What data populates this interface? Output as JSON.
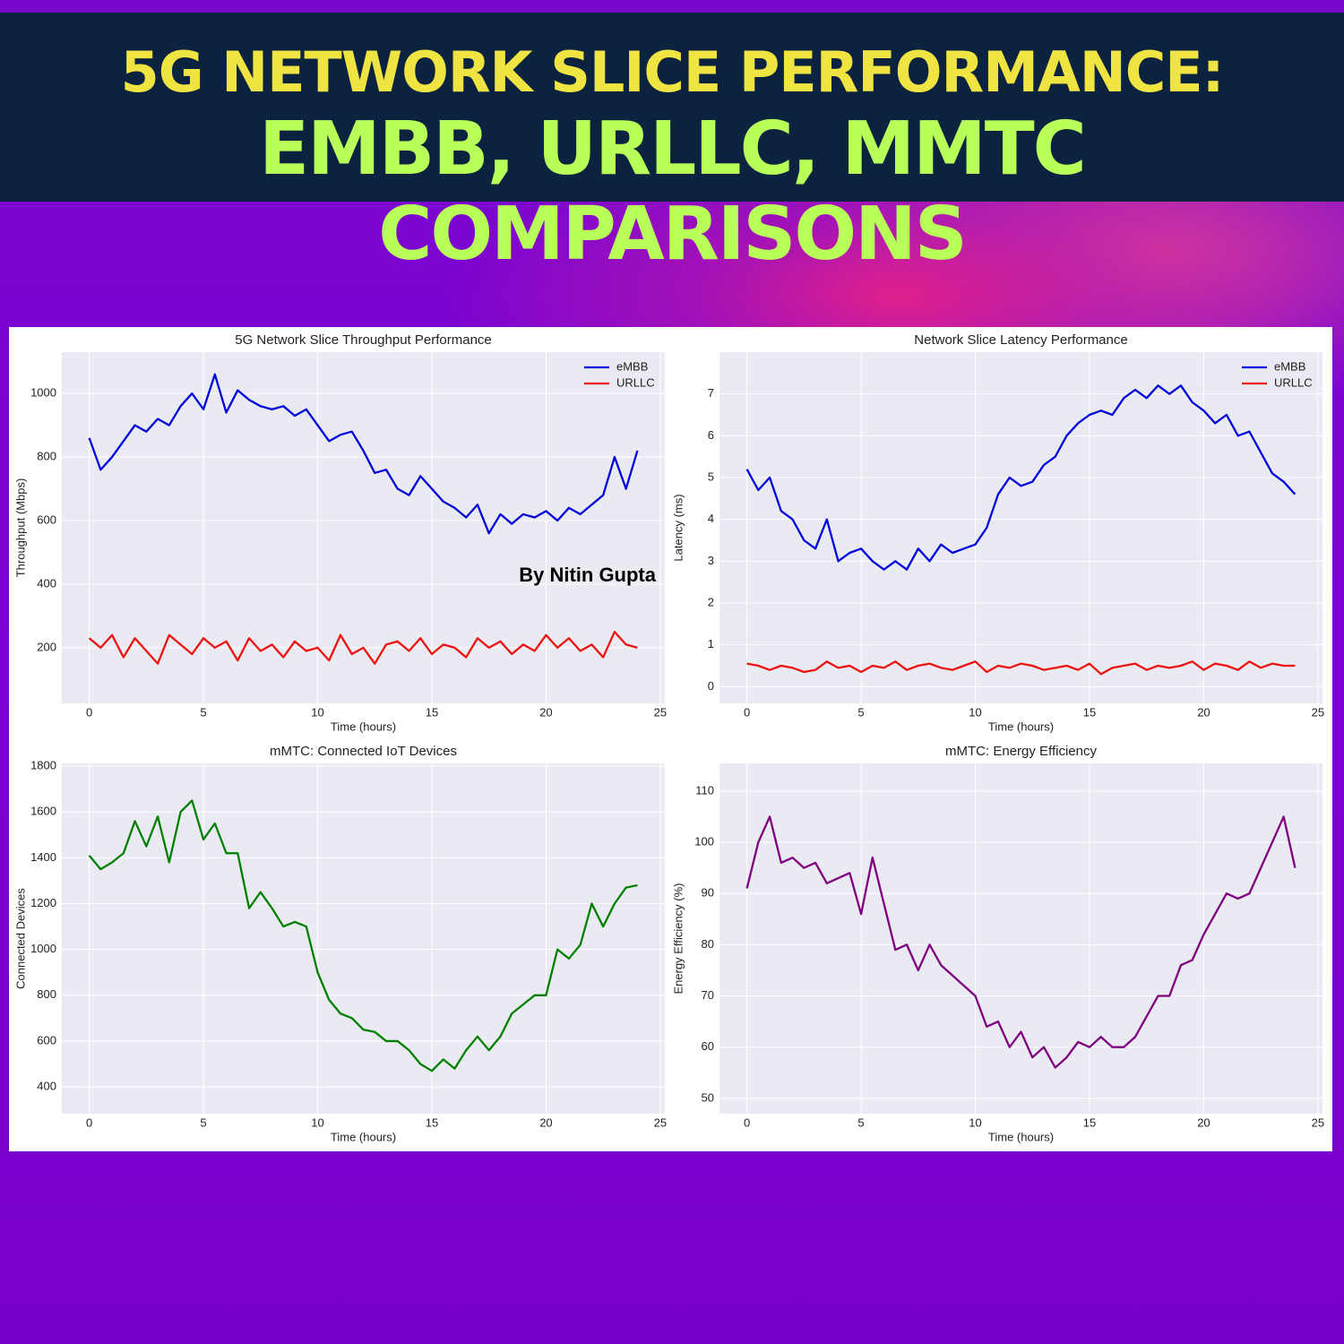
{
  "header": {
    "line1": "5G NETWORK  SLICE PERFORMANCE:",
    "line2": "EMBB, URLLC, MMTC COMPARISONS"
  },
  "chart_data": [
    {
      "type": "line",
      "title": "5G Network Slice Throughput Performance",
      "x_label": "Time (hours)",
      "y_label": "Throughput (Mbps)",
      "annotation": "By Nitin Gupta",
      "legend": "upper right",
      "grid": true,
      "xlim": [
        -1.2,
        25.2
      ],
      "xticks": [
        0,
        5,
        10,
        15,
        20,
        25
      ],
      "ylim": [
        25,
        1130
      ],
      "yticks": [
        200,
        400,
        600,
        800,
        1000
      ],
      "x": [
        0,
        0.5,
        1,
        1.5,
        2,
        2.5,
        3,
        3.5,
        4,
        4.5,
        5,
        5.5,
        6,
        6.5,
        7,
        7.5,
        8,
        8.5,
        9,
        9.5,
        10,
        10.5,
        11,
        11.5,
        12,
        12.5,
        13,
        13.5,
        14,
        14.5,
        15,
        15.5,
        16,
        16.5,
        17,
        17.5,
        18,
        18.5,
        19,
        19.5,
        20,
        20.5,
        21,
        21.5,
        22,
        22.5,
        23,
        23.5,
        24
      ],
      "series": [
        {
          "name": "eMBB",
          "color": "#0000dd",
          "values": [
            860,
            760,
            800,
            850,
            900,
            880,
            920,
            900,
            960,
            1000,
            950,
            1060,
            940,
            1010,
            980,
            960,
            950,
            960,
            930,
            950,
            900,
            850,
            870,
            880,
            820,
            750,
            760,
            700,
            680,
            740,
            700,
            660,
            640,
            610,
            650,
            560,
            620,
            590,
            620,
            610,
            630,
            600,
            640,
            620,
            650,
            680,
            800,
            700,
            820
          ]
        },
        {
          "name": "URLLC",
          "color": "#ee1111",
          "values": [
            230,
            200,
            240,
            170,
            230,
            190,
            150,
            240,
            210,
            180,
            230,
            200,
            220,
            160,
            230,
            190,
            210,
            170,
            220,
            190,
            200,
            160,
            240,
            180,
            200,
            150,
            210,
            220,
            190,
            230,
            180,
            210,
            200,
            170,
            230,
            200,
            220,
            180,
            210,
            190,
            240,
            200,
            230,
            190,
            210,
            170,
            250,
            210,
            200
          ]
        }
      ]
    },
    {
      "type": "line",
      "title": "Network Slice Latency Performance",
      "x_label": "Time (hours)",
      "y_label": "Latency (ms)",
      "legend": "upper right",
      "grid": true,
      "xlim": [
        -1.2,
        25.2
      ],
      "xticks": [
        0,
        5,
        10,
        15,
        20,
        25
      ],
      "ylim": [
        -0.4,
        8.0
      ],
      "yticks": [
        0,
        1,
        2,
        3,
        4,
        5,
        6,
        7
      ],
      "x": [
        0,
        0.5,
        1,
        1.5,
        2,
        2.5,
        3,
        3.5,
        4,
        4.5,
        5,
        5.5,
        6,
        6.5,
        7,
        7.5,
        8,
        8.5,
        9,
        9.5,
        10,
        10.5,
        11,
        11.5,
        12,
        12.5,
        13,
        13.5,
        14,
        14.5,
        15,
        15.5,
        16,
        16.5,
        17,
        17.5,
        18,
        18.5,
        19,
        19.5,
        20,
        20.5,
        21,
        21.5,
        22,
        22.5,
        23,
        23.5,
        24
      ],
      "series": [
        {
          "name": "eMBB",
          "color": "#0000dd",
          "values": [
            5.2,
            4.7,
            5.0,
            4.2,
            4.0,
            3.5,
            3.3,
            4.0,
            3.0,
            3.2,
            3.3,
            3.0,
            2.8,
            3.0,
            2.8,
            3.3,
            3.0,
            3.4,
            3.2,
            3.3,
            3.4,
            3.8,
            4.6,
            5.0,
            4.8,
            4.9,
            5.3,
            5.5,
            6.0,
            6.3,
            6.5,
            6.6,
            6.5,
            6.9,
            7.1,
            6.9,
            7.2,
            7.0,
            7.2,
            6.8,
            6.6,
            6.3,
            6.5,
            6.0,
            6.1,
            5.6,
            5.1,
            4.9,
            4.6
          ]
        },
        {
          "name": "URLLC",
          "color": "#ee1111",
          "values": [
            0.55,
            0.5,
            0.4,
            0.5,
            0.45,
            0.35,
            0.4,
            0.6,
            0.45,
            0.5,
            0.35,
            0.5,
            0.45,
            0.6,
            0.4,
            0.5,
            0.55,
            0.45,
            0.4,
            0.5,
            0.6,
            0.35,
            0.5,
            0.45,
            0.55,
            0.5,
            0.4,
            0.45,
            0.5,
            0.4,
            0.55,
            0.3,
            0.45,
            0.5,
            0.55,
            0.4,
            0.5,
            0.45,
            0.5,
            0.6,
            0.4,
            0.55,
            0.5,
            0.4,
            0.6,
            0.45,
            0.55,
            0.5,
            0.5
          ]
        }
      ]
    },
    {
      "type": "line",
      "title": "mMTC: Connected IoT Devices",
      "x_label": "Time (hours)",
      "y_label": "Connected Devices",
      "grid": true,
      "xlim": [
        -1.2,
        25.2
      ],
      "xticks": [
        0,
        5,
        10,
        15,
        20,
        25
      ],
      "ylim": [
        283,
        1812
      ],
      "yticks": [
        400,
        600,
        800,
        1000,
        1200,
        1400,
        1600,
        1800
      ],
      "x": [
        0,
        0.5,
        1,
        1.5,
        2,
        2.5,
        3,
        3.5,
        4,
        4.5,
        5,
        5.5,
        6,
        6.5,
        7,
        7.5,
        8,
        8.5,
        9,
        9.5,
        10,
        10.5,
        11,
        11.5,
        12,
        12.5,
        13,
        13.5,
        14,
        14.5,
        15,
        15.5,
        16,
        16.5,
        17,
        17.5,
        18,
        18.5,
        19,
        19.5,
        20,
        20.5,
        21,
        21.5,
        22,
        22.5,
        23,
        23.5,
        24
      ],
      "series": [
        {
          "color": "#008000",
          "values": [
            1410,
            1350,
            1380,
            1420,
            1560,
            1450,
            1580,
            1380,
            1600,
            1650,
            1480,
            1550,
            1420,
            1420,
            1180,
            1250,
            1180,
            1100,
            1120,
            1100,
            900,
            780,
            720,
            700,
            650,
            640,
            600,
            600,
            560,
            500,
            470,
            520,
            480,
            560,
            620,
            560,
            620,
            720,
            760,
            800,
            800,
            1000,
            960,
            1020,
            1200,
            1100,
            1200,
            1270,
            1280
          ]
        }
      ]
    },
    {
      "type": "line",
      "title": "mMTC: Energy Efficiency",
      "x_label": "Time (hours)",
      "y_label": "Energy Efficiency (%)",
      "grid": true,
      "xlim": [
        -1.2,
        25.2
      ],
      "xticks": [
        0,
        5,
        10,
        15,
        20,
        25
      ],
      "ylim": [
        47,
        115.4
      ],
      "yticks": [
        50,
        60,
        70,
        80,
        90,
        100,
        110
      ],
      "x": [
        0,
        0.5,
        1,
        1.5,
        2,
        2.5,
        3,
        3.5,
        4,
        4.5,
        5,
        5.5,
        6,
        6.5,
        7,
        7.5,
        8,
        8.5,
        9,
        9.5,
        10,
        10.5,
        11,
        11.5,
        12,
        12.5,
        13,
        13.5,
        14,
        14.5,
        15,
        15.5,
        16,
        16.5,
        17,
        17.5,
        18,
        18.5,
        19,
        19.5,
        20,
        20.5,
        21,
        21.5,
        22,
        22.5,
        23,
        23.5,
        24
      ],
      "series": [
        {
          "color": "#800080",
          "values": [
            91,
            100,
            105,
            96,
            97,
            95,
            96,
            92,
            93,
            94,
            86,
            97,
            88,
            79,
            80,
            75,
            80,
            76,
            74,
            72,
            70,
            64,
            65,
            60,
            63,
            58,
            60,
            56,
            58,
            61,
            60,
            62,
            60,
            60,
            62,
            66,
            70,
            70,
            76,
            77,
            82,
            86,
            90,
            89,
            90,
            95,
            100,
            105,
            95
          ]
        }
      ]
    }
  ]
}
